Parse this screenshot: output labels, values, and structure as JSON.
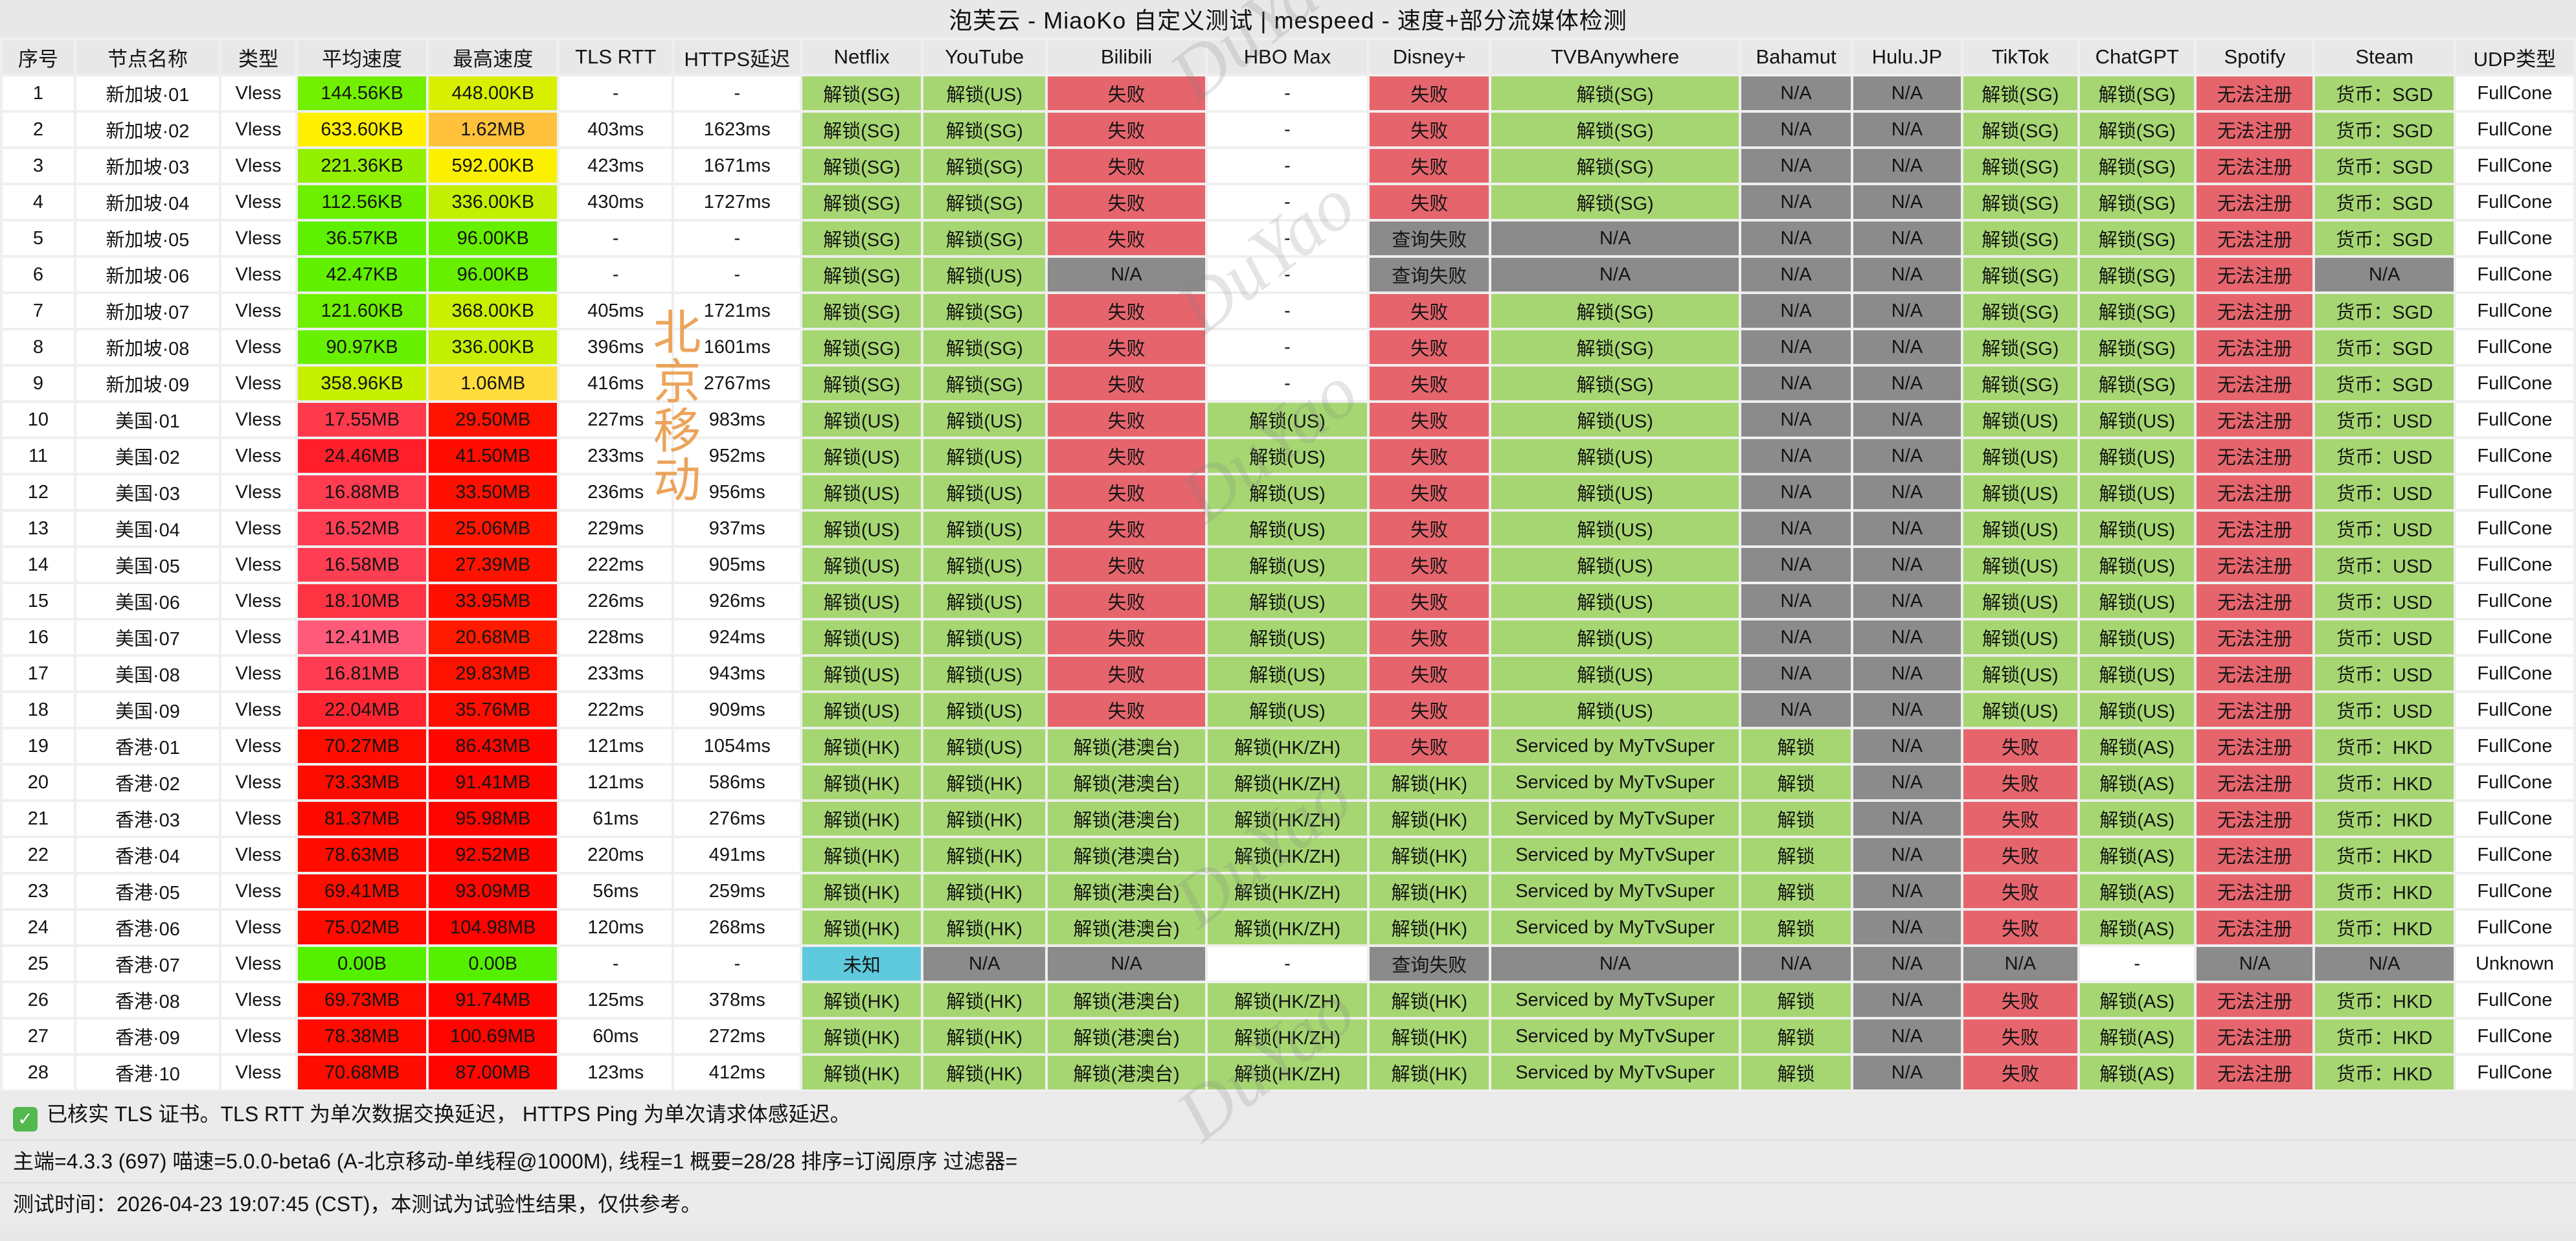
{
  "title": "泡芙云 - MiaoKo 自定义测试 | mespeed - 速度+部分流媒体检测",
  "status_colors": {
    "g": "#a6d672",
    "r": "#e6656d",
    "n": "#8b8b8b",
    "c": "#5fc9de",
    "w": "#ffffff"
  },
  "watermarks": {
    "diagonal_text": "DuYao",
    "vertical_text": "北京移动"
  },
  "columns": [
    {
      "key": "idx",
      "label": "序号",
      "width": 2.82,
      "kind": "text"
    },
    {
      "key": "name",
      "label": "节点名称",
      "width": 5.66,
      "kind": "text"
    },
    {
      "key": "type",
      "label": "类型",
      "width": 2.92,
      "kind": "text"
    },
    {
      "key": "avg",
      "label": "平均速度",
      "width": 5.1,
      "kind": "speed"
    },
    {
      "key": "max",
      "label": "最高速度",
      "width": 5.08,
      "kind": "speed"
    },
    {
      "key": "tls",
      "label": "TLS RTT",
      "width": 4.45,
      "kind": "text"
    },
    {
      "key": "https",
      "label": "HTTPS延迟",
      "width": 4.98,
      "kind": "text"
    },
    {
      "key": "netflix",
      "label": "Netflix",
      "width": 4.7,
      "kind": "status"
    },
    {
      "key": "youtube",
      "label": "YouTube",
      "width": 4.83,
      "kind": "status"
    },
    {
      "key": "bilibili",
      "label": "Bilibili",
      "width": 6.23,
      "kind": "status"
    },
    {
      "key": "hbomax",
      "label": "HBO Max",
      "width": 6.33,
      "kind": "status"
    },
    {
      "key": "disney",
      "label": "Disney+",
      "width": 4.73,
      "kind": "status"
    },
    {
      "key": "tvb",
      "label": "TVBAnywhere",
      "width": 9.8,
      "kind": "status"
    },
    {
      "key": "bahamut",
      "label": "Bahamut",
      "width": 4.35,
      "kind": "status"
    },
    {
      "key": "hulu",
      "label": "Hulu.JP",
      "width": 4.25,
      "kind": "status"
    },
    {
      "key": "tiktok",
      "label": "TikTok",
      "width": 4.53,
      "kind": "status"
    },
    {
      "key": "chatgpt",
      "label": "ChatGPT",
      "width": 4.53,
      "kind": "status"
    },
    {
      "key": "spotify",
      "label": "Spotify",
      "width": 4.6,
      "kind": "status"
    },
    {
      "key": "steam",
      "label": "Steam",
      "width": 5.48,
      "kind": "status"
    },
    {
      "key": "udp",
      "label": "UDP类型",
      "width": 4.65,
      "kind": "text"
    }
  ],
  "rows": [
    [
      "1",
      "新加坡·01",
      "Vless",
      "144.56KB|#72f000",
      "448.00KB|#d8f000",
      "-",
      "-",
      "g:解锁(SG)",
      "g:解锁(US)",
      "r:失败",
      "w:-",
      "r:失败",
      "g:解锁(SG)",
      "n:N/A",
      "n:N/A",
      "g:解锁(SG)",
      "g:解锁(SG)",
      "r:无法注册",
      "g:货币：SGD",
      "FullCone"
    ],
    [
      "2",
      "新加坡·02",
      "Vless",
      "633.60KB|#fff000",
      "1.62MB|#ffc13c",
      "403ms",
      "1623ms",
      "g:解锁(SG)",
      "g:解锁(SG)",
      "r:失败",
      "w:-",
      "r:失败",
      "g:解锁(SG)",
      "n:N/A",
      "n:N/A",
      "g:解锁(SG)",
      "g:解锁(SG)",
      "r:无法注册",
      "g:货币：SGD",
      "FullCone"
    ],
    [
      "3",
      "新加坡·03",
      "Vless",
      "221.36KB|#93f000",
      "592.00KB|#fbf000",
      "423ms",
      "1671ms",
      "g:解锁(SG)",
      "g:解锁(SG)",
      "r:失败",
      "w:-",
      "r:失败",
      "g:解锁(SG)",
      "n:N/A",
      "n:N/A",
      "g:解锁(SG)",
      "g:解锁(SG)",
      "r:无法注册",
      "g:货币：SGD",
      "FullCone"
    ],
    [
      "4",
      "新加坡·04",
      "Vless",
      "112.56KB|#6cf000",
      "336.00KB|#c2f000",
      "430ms",
      "1727ms",
      "g:解锁(SG)",
      "g:解锁(SG)",
      "r:失败",
      "w:-",
      "r:失败",
      "g:解锁(SG)",
      "n:N/A",
      "n:N/A",
      "g:解锁(SG)",
      "g:解锁(SG)",
      "r:无法注册",
      "g:货币：SGD",
      "FullCone"
    ],
    [
      "5",
      "新加坡·05",
      "Vless",
      "36.57KB|#5ef000",
      "96.00KB|#66f000",
      "-",
      "-",
      "g:解锁(SG)",
      "g:解锁(SG)",
      "r:失败",
      "w:-",
      "n:查询失败",
      "n:N/A",
      "n:N/A",
      "n:N/A",
      "g:解锁(SG)",
      "g:解锁(SG)",
      "r:无法注册",
      "g:货币：SGD",
      "FullCone"
    ],
    [
      "6",
      "新加坡·06",
      "Vless",
      "42.47KB|#60f000",
      "96.00KB|#66f000",
      "-",
      "-",
      "g:解锁(SG)",
      "g:解锁(US)",
      "n:N/A",
      "w:-",
      "n:查询失败",
      "n:N/A",
      "n:N/A",
      "n:N/A",
      "g:解锁(SG)",
      "g:解锁(SG)",
      "r:无法注册",
      "n:N/A",
      "FullCone"
    ],
    [
      "7",
      "新加坡·07",
      "Vless",
      "121.60KB|#6ef000",
      "368.00KB|#c8f000",
      "405ms",
      "1721ms",
      "g:解锁(SG)",
      "g:解锁(SG)",
      "r:失败",
      "w:-",
      "r:失败",
      "g:解锁(SG)",
      "n:N/A",
      "n:N/A",
      "g:解锁(SG)",
      "g:解锁(SG)",
      "r:无法注册",
      "g:货币：SGD",
      "FullCone"
    ],
    [
      "8",
      "新加坡·08",
      "Vless",
      "90.97KB|#67f000",
      "336.00KB|#c2f000",
      "396ms",
      "1601ms",
      "g:解锁(SG)",
      "g:解锁(SG)",
      "r:失败",
      "w:-",
      "r:失败",
      "g:解锁(SG)",
      "n:N/A",
      "n:N/A",
      "g:解锁(SG)",
      "g:解锁(SG)",
      "r:无法注册",
      "g:货币：SGD",
      "FullCone"
    ],
    [
      "9",
      "新加坡·09",
      "Vless",
      "358.96KB|#c6f000",
      "1.06MB|#ffdd3c",
      "416ms",
      "2767ms",
      "g:解锁(SG)",
      "g:解锁(SG)",
      "r:失败",
      "w:-",
      "r:失败",
      "g:解锁(SG)",
      "n:N/A",
      "n:N/A",
      "g:解锁(SG)",
      "g:解锁(SG)",
      "r:无法注册",
      "g:货币：SGD",
      "FullCone"
    ],
    [
      "10",
      "美国·01",
      "Vless",
      "17.55MB|#ff3a4c",
      "29.50MB|#ff1200",
      "227ms",
      "983ms",
      "g:解锁(US)",
      "g:解锁(US)",
      "r:失败",
      "g:解锁(US)",
      "r:失败",
      "g:解锁(US)",
      "n:N/A",
      "n:N/A",
      "g:解锁(US)",
      "g:解锁(US)",
      "r:无法注册",
      "g:货币：USD",
      "FullCone"
    ],
    [
      "11",
      "美国·02",
      "Vless",
      "24.46MB|#ff1f2a",
      "41.50MB|#ff0b00",
      "233ms",
      "952ms",
      "g:解锁(US)",
      "g:解锁(US)",
      "r:失败",
      "g:解锁(US)",
      "r:失败",
      "g:解锁(US)",
      "n:N/A",
      "n:N/A",
      "g:解锁(US)",
      "g:解锁(US)",
      "r:无法注册",
      "g:货币：USD",
      "FullCone"
    ],
    [
      "12",
      "美国·03",
      "Vless",
      "16.88MB|#ff3c50",
      "33.50MB|#ff0f00",
      "236ms",
      "956ms",
      "g:解锁(US)",
      "g:解锁(US)",
      "r:失败",
      "g:解锁(US)",
      "r:失败",
      "g:解锁(US)",
      "n:N/A",
      "n:N/A",
      "g:解锁(US)",
      "g:解锁(US)",
      "r:无法注册",
      "g:货币：USD",
      "FullCone"
    ],
    [
      "13",
      "美国·04",
      "Vless",
      "16.52MB|#ff3e54",
      "25.06MB|#ff1500",
      "229ms",
      "937ms",
      "g:解锁(US)",
      "g:解锁(US)",
      "r:失败",
      "g:解锁(US)",
      "r:失败",
      "g:解锁(US)",
      "n:N/A",
      "n:N/A",
      "g:解锁(US)",
      "g:解锁(US)",
      "r:无法注册",
      "g:货币：USD",
      "FullCone"
    ],
    [
      "14",
      "美国·05",
      "Vless",
      "16.58MB|#ff3e53",
      "27.39MB|#ff1300",
      "222ms",
      "905ms",
      "g:解锁(US)",
      "g:解锁(US)",
      "r:失败",
      "g:解锁(US)",
      "r:失败",
      "g:解锁(US)",
      "n:N/A",
      "n:N/A",
      "g:解锁(US)",
      "g:解锁(US)",
      "r:无法注册",
      "g:货币：USD",
      "FullCone"
    ],
    [
      "15",
      "美国·06",
      "Vless",
      "18.10MB|#ff3443",
      "33.95MB|#ff0f00",
      "226ms",
      "926ms",
      "g:解锁(US)",
      "g:解锁(US)",
      "r:失败",
      "g:解锁(US)",
      "r:失败",
      "g:解锁(US)",
      "n:N/A",
      "n:N/A",
      "g:解锁(US)",
      "g:解锁(US)",
      "r:无法注册",
      "g:货币：USD",
      "FullCone"
    ],
    [
      "16",
      "美国·07",
      "Vless",
      "12.41MB|#ff5a7a",
      "20.68MB|#ff1b00",
      "228ms",
      "924ms",
      "g:解锁(US)",
      "g:解锁(US)",
      "r:失败",
      "g:解锁(US)",
      "r:失败",
      "g:解锁(US)",
      "n:N/A",
      "n:N/A",
      "g:解锁(US)",
      "g:解锁(US)",
      "r:无法注册",
      "g:货币：USD",
      "FullCone"
    ],
    [
      "17",
      "美国·08",
      "Vless",
      "16.81MB|#ff3c51",
      "29.83MB|#ff1100",
      "233ms",
      "943ms",
      "g:解锁(US)",
      "g:解锁(US)",
      "r:失败",
      "g:解锁(US)",
      "r:失败",
      "g:解锁(US)",
      "n:N/A",
      "n:N/A",
      "g:解锁(US)",
      "g:解锁(US)",
      "r:无法注册",
      "g:货币：USD",
      "FullCone"
    ],
    [
      "18",
      "美国·09",
      "Vless",
      "22.04MB|#ff2430",
      "35.76MB|#ff0e00",
      "222ms",
      "909ms",
      "g:解锁(US)",
      "g:解锁(US)",
      "r:失败",
      "g:解锁(US)",
      "r:失败",
      "g:解锁(US)",
      "n:N/A",
      "n:N/A",
      "g:解锁(US)",
      "g:解锁(US)",
      "r:无法注册",
      "g:货币：USD",
      "FullCone"
    ],
    [
      "19",
      "香港·01",
      "Vless",
      "70.27MB|#ff0d00",
      "86.43MB|#ff0700",
      "121ms",
      "1054ms",
      "g:解锁(HK)",
      "g:解锁(US)",
      "g:解锁(港澳台)",
      "g:解锁(HK/ZH)",
      "r:失败",
      "g:Serviced by MyTvSuper",
      "g:解锁",
      "n:N/A",
      "r:失败",
      "g:解锁(AS)",
      "r:无法注册",
      "g:货币：HKD",
      "FullCone"
    ],
    [
      "20",
      "香港·02",
      "Vless",
      "73.33MB|#ff0c00",
      "91.41MB|#ff0600",
      "121ms",
      "586ms",
      "g:解锁(HK)",
      "g:解锁(HK)",
      "g:解锁(港澳台)",
      "g:解锁(HK/ZH)",
      "g:解锁(HK)",
      "g:Serviced by MyTvSuper",
      "g:解锁",
      "n:N/A",
      "r:失败",
      "g:解锁(AS)",
      "r:无法注册",
      "g:货币：HKD",
      "FullCone"
    ],
    [
      "21",
      "香港·03",
      "Vless",
      "81.37MB|#ff0a00",
      "95.98MB|#ff0500",
      "61ms",
      "276ms",
      "g:解锁(HK)",
      "g:解锁(HK)",
      "g:解锁(港澳台)",
      "g:解锁(HK/ZH)",
      "g:解锁(HK)",
      "g:Serviced by MyTvSuper",
      "g:解锁",
      "n:N/A",
      "r:失败",
      "g:解锁(AS)",
      "r:无法注册",
      "g:货币：HKD",
      "FullCone"
    ],
    [
      "22",
      "香港·04",
      "Vless",
      "78.63MB|#ff0b00",
      "92.52MB|#ff0600",
      "220ms",
      "491ms",
      "g:解锁(HK)",
      "g:解锁(HK)",
      "g:解锁(港澳台)",
      "g:解锁(HK/ZH)",
      "g:解锁(HK)",
      "g:Serviced by MyTvSuper",
      "g:解锁",
      "n:N/A",
      "r:失败",
      "g:解锁(AS)",
      "r:无法注册",
      "g:货币：HKD",
      "FullCone"
    ],
    [
      "23",
      "香港·05",
      "Vless",
      "69.41MB|#ff0d00",
      "93.09MB|#ff0600",
      "56ms",
      "259ms",
      "g:解锁(HK)",
      "g:解锁(HK)",
      "g:解锁(港澳台)",
      "g:解锁(HK/ZH)",
      "g:解锁(HK)",
      "g:Serviced by MyTvSuper",
      "g:解锁",
      "n:N/A",
      "r:失败",
      "g:解锁(AS)",
      "r:无法注册",
      "g:货币：HKD",
      "FullCone"
    ],
    [
      "24",
      "香港·06",
      "Vless",
      "75.02MB|#ff0b00",
      "104.98MB|#ff0400",
      "120ms",
      "268ms",
      "g:解锁(HK)",
      "g:解锁(HK)",
      "g:解锁(港澳台)",
      "g:解锁(HK/ZH)",
      "g:解锁(HK)",
      "g:Serviced by MyTvSuper",
      "g:解锁",
      "n:N/A",
      "r:失败",
      "g:解锁(AS)",
      "r:无法注册",
      "g:货币：HKD",
      "FullCone"
    ],
    [
      "25",
      "香港·07",
      "Vless",
      "0.00B|#55f000",
      "0.00B|#55f000",
      "-",
      "-",
      "c:未知",
      "n:N/A",
      "n:N/A",
      "w:-",
      "n:查询失败",
      "n:N/A",
      "n:N/A",
      "n:N/A",
      "n:N/A",
      "w:-",
      "n:N/A",
      "n:N/A",
      "Unknown"
    ],
    [
      "26",
      "香港·08",
      "Vless",
      "69.73MB|#ff0d00",
      "91.74MB|#ff0600",
      "125ms",
      "378ms",
      "g:解锁(HK)",
      "g:解锁(HK)",
      "g:解锁(港澳台)",
      "g:解锁(HK/ZH)",
      "g:解锁(HK)",
      "g:Serviced by MyTvSuper",
      "g:解锁",
      "n:N/A",
      "r:失败",
      "g:解锁(AS)",
      "r:无法注册",
      "g:货币：HKD",
      "FullCone"
    ],
    [
      "27",
      "香港·09",
      "Vless",
      "78.38MB|#ff0b00",
      "100.69MB|#ff0500",
      "60ms",
      "272ms",
      "g:解锁(HK)",
      "g:解锁(HK)",
      "g:解锁(港澳台)",
      "g:解锁(HK/ZH)",
      "g:解锁(HK)",
      "g:Serviced by MyTvSuper",
      "g:解锁",
      "n:N/A",
      "r:失败",
      "g:解锁(AS)",
      "r:无法注册",
      "g:货币：HKD",
      "FullCone"
    ],
    [
      "28",
      "香港·10",
      "Vless",
      "70.68MB|#ff0c00",
      "87.00MB|#ff0700",
      "123ms",
      "412ms",
      "g:解锁(HK)",
      "g:解锁(HK)",
      "g:解锁(港澳台)",
      "g:解锁(HK/ZH)",
      "g:解锁(HK)",
      "g:Serviced by MyTvSuper",
      "g:解锁",
      "n:N/A",
      "r:失败",
      "g:解锁(AS)",
      "r:无法注册",
      "g:货币：HKD",
      "FullCone"
    ]
  ],
  "footer": {
    "check_icon": "✓",
    "line1": "已核实 TLS 证书。TLS RTT 为单次数据交换延迟， HTTPS Ping 为单次请求体感延迟。",
    "line2": "主端=4.3.3 (697) 喵速=5.0.0-beta6 (A-北京移动-单线程@1000M), 线程=1 概要=28/28 排序=订阅原序 过滤器=",
    "line3": "测试时间：2026-04-23 19:07:45 (CST)，本测试为试验性结果，仅供参考。"
  }
}
